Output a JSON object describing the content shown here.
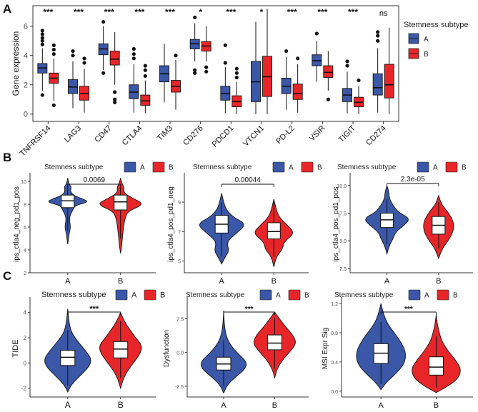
{
  "colors": {
    "A": "#3a57a8",
    "B": "#e8262a",
    "axis": "#333333",
    "text": "#4d4d4d"
  },
  "panel_labels": [
    "A",
    "B",
    "C"
  ],
  "legend_title": "Stemness subtype",
  "legend_keys": [
    "A",
    "B"
  ],
  "chart_data": [
    {
      "panel": "A",
      "type": "boxplot",
      "ylabel": "Gene expression",
      "ylim": [
        -0.5,
        7.4
      ],
      "yticks": [
        0,
        2,
        4,
        6
      ],
      "series": [
        {
          "name": "A"
        },
        {
          "name": "B"
        }
      ],
      "genes": [
        {
          "name": "TNFRSF14",
          "sig": "***",
          "A": {
            "q1": 2.8,
            "med": 3.15,
            "q3": 3.45,
            "lo": 1.6,
            "hi": 4.5,
            "out": [
              1.3,
              4.75,
              5.0,
              5.2,
              5.45,
              5.7
            ]
          },
          "B": {
            "q1": 2.1,
            "med": 2.45,
            "q3": 2.8,
            "lo": 0.9,
            "hi": 3.8,
            "out": [
              4.1,
              4.4,
              4.7,
              0.6
            ]
          }
        },
        {
          "name": "LAG3",
          "sig": "***",
          "A": {
            "q1": 1.4,
            "med": 1.85,
            "q3": 2.35,
            "lo": 0.4,
            "hi": 3.6,
            "out": [
              4.0,
              4.3
            ]
          },
          "B": {
            "q1": 0.95,
            "med": 1.4,
            "q3": 1.9,
            "lo": 0.1,
            "hi": 3.1,
            "out": [
              3.5,
              3.8
            ]
          }
        },
        {
          "name": "CD47",
          "sig": "***",
          "A": {
            "q1": 4.05,
            "med": 4.45,
            "q3": 4.8,
            "lo": 3.0,
            "hi": 6.0,
            "out": [
              6.3,
              2.8
            ]
          },
          "B": {
            "q1": 3.35,
            "med": 3.75,
            "q3": 4.3,
            "lo": 2.0,
            "hi": 5.6,
            "out": [
              1.5,
              1.0,
              0.8
            ]
          }
        },
        {
          "name": "CTLA4",
          "sig": "***",
          "A": {
            "q1": 1.05,
            "med": 1.5,
            "q3": 2.0,
            "lo": 0.1,
            "hi": 3.4,
            "out": [
              3.8,
              4.1,
              4.45
            ]
          },
          "B": {
            "q1": 0.6,
            "med": 0.9,
            "q3": 1.3,
            "lo": 0.05,
            "hi": 2.3,
            "out": [
              2.6,
              3.0,
              3.3
            ]
          }
        },
        {
          "name": "TIM3",
          "sig": "***",
          "A": {
            "q1": 2.2,
            "med": 2.75,
            "q3": 3.3,
            "lo": 0.8,
            "hi": 4.8,
            "out": []
          },
          "B": {
            "q1": 1.5,
            "med": 1.9,
            "q3": 2.3,
            "lo": 0.3,
            "hi": 3.7,
            "out": [
              4.0
            ]
          }
        },
        {
          "name": "CD276",
          "sig": "*",
          "A": {
            "q1": 4.45,
            "med": 4.8,
            "q3": 5.1,
            "lo": 3.6,
            "hi": 6.2,
            "out": [
              6.6,
              3.0,
              2.8
            ]
          },
          "B": {
            "q1": 4.3,
            "med": 4.65,
            "q3": 4.95,
            "lo": 3.6,
            "hi": 6.0,
            "out": [
              3.2,
              2.9
            ]
          }
        },
        {
          "name": "PDCD1",
          "sig": "***",
          "A": {
            "q1": 0.95,
            "med": 1.4,
            "q3": 1.9,
            "lo": 0.05,
            "hi": 3.2,
            "out": [
              3.5,
              4.7
            ]
          },
          "B": {
            "q1": 0.5,
            "med": 0.85,
            "q3": 1.25,
            "lo": 0.0,
            "hi": 2.2,
            "out": [
              2.5,
              2.8,
              3.1
            ]
          }
        },
        {
          "name": "VTCN1",
          "sig": "*",
          "A": {
            "q1": 0.85,
            "med": 2.2,
            "q3": 3.6,
            "lo": 0.0,
            "hi": 6.3,
            "out": []
          },
          "B": {
            "q1": 1.2,
            "med": 2.55,
            "q3": 3.95,
            "lo": 0.0,
            "hi": 7.2,
            "out": []
          }
        },
        {
          "name": "PD-L2",
          "sig": "***",
          "A": {
            "q1": 1.4,
            "med": 1.9,
            "q3": 2.45,
            "lo": 0.3,
            "hi": 3.9,
            "out": [
              4.3
            ]
          },
          "B": {
            "q1": 1.0,
            "med": 1.4,
            "q3": 2.05,
            "lo": 0.1,
            "hi": 3.4,
            "out": [
              3.8
            ]
          }
        },
        {
          "name": "VSIR",
          "sig": "***",
          "A": {
            "q1": 3.3,
            "med": 3.65,
            "q3": 4.05,
            "lo": 2.2,
            "hi": 5.0,
            "out": [
              5.5
            ]
          },
          "B": {
            "q1": 2.5,
            "med": 2.85,
            "q3": 3.3,
            "lo": 1.6,
            "hi": 4.3,
            "out": [
              1.0
            ]
          }
        },
        {
          "name": "TIGIT",
          "sig": "***",
          "A": {
            "q1": 0.85,
            "med": 1.3,
            "q3": 1.75,
            "lo": 0.05,
            "hi": 2.9,
            "out": [
              3.3,
              3.6
            ]
          },
          "B": {
            "q1": 0.5,
            "med": 0.8,
            "q3": 1.15,
            "lo": 0.0,
            "hi": 1.9,
            "out": [
              2.3
            ]
          }
        },
        {
          "name": "CD274",
          "sig": "ns",
          "A": {
            "q1": 1.3,
            "med": 1.8,
            "q3": 2.75,
            "lo": 0.1,
            "hi": 4.5,
            "out": [
              5.0,
              5.35,
              5.6
            ]
          },
          "B": {
            "q1": 1.1,
            "med": 2.0,
            "q3": 3.4,
            "lo": 0.0,
            "hi": 5.9,
            "out": []
          }
        }
      ]
    },
    {
      "panel": "B1",
      "type": "violin",
      "ylabel": "ips_ctla4_neg_pd1_pos",
      "ylim": [
        2,
        10.5
      ],
      "yticks": [
        2,
        4,
        6,
        8,
        10
      ],
      "categories": [
        "A",
        "B"
      ],
      "pvalue": "0.0069",
      "groups": [
        {
          "name": "A",
          "q1": 7.7,
          "med": 8.3,
          "q3": 8.8,
          "lo": 5.7,
          "hi": 9.5,
          "density": [
            [
              4.5,
              0.0
            ],
            [
              5.5,
              0.06
            ],
            [
              6.0,
              0.12
            ],
            [
              6.8,
              0.05
            ],
            [
              7.5,
              0.2
            ],
            [
              7.9,
              0.3
            ],
            [
              8.2,
              0.85
            ],
            [
              8.5,
              0.55
            ],
            [
              8.8,
              0.2
            ],
            [
              9.2,
              0.1
            ],
            [
              9.5,
              0.15
            ],
            [
              9.8,
              0.04
            ],
            [
              10.3,
              0.0
            ]
          ]
        },
        {
          "name": "B",
          "q1": 7.5,
          "med": 8.2,
          "q3": 8.8,
          "lo": 5.0,
          "hi": 9.5,
          "density": [
            [
              3.7,
              0.0
            ],
            [
              4.3,
              0.04
            ],
            [
              5.2,
              0.08
            ],
            [
              6.0,
              0.12
            ],
            [
              6.8,
              0.18
            ],
            [
              7.4,
              0.3
            ],
            [
              8.0,
              0.95
            ],
            [
              8.5,
              0.5
            ],
            [
              9.0,
              0.12
            ],
            [
              9.5,
              0.14
            ],
            [
              9.9,
              0.04
            ],
            [
              10.3,
              0.0
            ]
          ]
        }
      ]
    },
    {
      "panel": "B2",
      "type": "violin",
      "ylabel": "ips_ctla4_pos_pd1_neg",
      "ylim": [
        4.2,
        10.8
      ],
      "yticks": [
        5,
        7,
        9
      ],
      "categories": [
        "A",
        "B"
      ],
      "pvalue": "0.00044",
      "groups": [
        {
          "name": "A",
          "q1": 6.9,
          "med": 7.5,
          "q3": 8.1,
          "lo": 5.3,
          "hi": 9.0,
          "density": [
            [
              4.8,
              0.0
            ],
            [
              5.3,
              0.15
            ],
            [
              5.7,
              0.3
            ],
            [
              6.3,
              0.2
            ],
            [
              6.9,
              0.6
            ],
            [
              7.5,
              1.0
            ],
            [
              8.0,
              0.45
            ],
            [
              8.5,
              0.18
            ],
            [
              9.0,
              0.08
            ],
            [
              9.6,
              0.0
            ]
          ]
        },
        {
          "name": "B",
          "q1": 6.5,
          "med": 7.0,
          "q3": 7.6,
          "lo": 5.3,
          "hi": 9.0,
          "density": [
            [
              4.6,
              0.0
            ],
            [
              5.3,
              0.1
            ],
            [
              5.8,
              0.35
            ],
            [
              6.3,
              0.4
            ],
            [
              6.9,
              0.85
            ],
            [
              7.5,
              0.5
            ],
            [
              8.0,
              0.2
            ],
            [
              8.6,
              0.08
            ],
            [
              9.2,
              0.0
            ]
          ]
        }
      ]
    },
    {
      "panel": "B3",
      "type": "violin",
      "ylabel": "ips_ctla4_pos_pd1_pos",
      "ylim": [
        2.1,
        10.9
      ],
      "yticks": [
        2.5,
        5.0,
        7.5,
        10.0
      ],
      "categories": [
        "A",
        "B"
      ],
      "pvalue": "2.3e-05",
      "groups": [
        {
          "name": "A",
          "q1": 6.2,
          "med": 6.9,
          "q3": 7.5,
          "lo": 4.7,
          "hi": 8.8,
          "density": [
            [
              3.8,
              0.0
            ],
            [
              4.6,
              0.1
            ],
            [
              5.2,
              0.25
            ],
            [
              5.8,
              0.35
            ],
            [
              6.4,
              0.7
            ],
            [
              7.0,
              0.95
            ],
            [
              7.6,
              0.45
            ],
            [
              8.2,
              0.25
            ],
            [
              8.8,
              0.1
            ],
            [
              9.4,
              0.08
            ],
            [
              10.0,
              0.0
            ]
          ]
        },
        {
          "name": "B",
          "q1": 5.6,
          "med": 6.4,
          "q3": 7.2,
          "lo": 4.3,
          "hi": 8.5,
          "density": [
            [
              3.4,
              0.0
            ],
            [
              4.3,
              0.15
            ],
            [
              5.2,
              0.45
            ],
            [
              6.0,
              0.62
            ],
            [
              6.8,
              0.6
            ],
            [
              7.6,
              0.38
            ],
            [
              8.3,
              0.12
            ],
            [
              9.1,
              0.0
            ]
          ]
        }
      ]
    },
    {
      "panel": "C1",
      "type": "violin",
      "ylabel": "TIDE",
      "ylim": [
        -2.7,
        5.0
      ],
      "yticks": [
        -2,
        0,
        2,
        4
      ],
      "categories": [
        "A",
        "B"
      ],
      "pvalue": "***",
      "groups": [
        {
          "name": "A",
          "q1": -0.2,
          "med": 0.45,
          "q3": 1.0,
          "lo": -1.8,
          "hi": 2.6,
          "density": [
            [
              -2.3,
              0.0
            ],
            [
              -1.7,
              0.15
            ],
            [
              -1.0,
              0.5
            ],
            [
              -0.3,
              0.85
            ],
            [
              0.3,
              0.95
            ],
            [
              1.0,
              0.7
            ],
            [
              1.7,
              0.4
            ],
            [
              2.4,
              0.15
            ],
            [
              3.2,
              0.05
            ],
            [
              4.3,
              0.0
            ]
          ]
        },
        {
          "name": "B",
          "q1": 0.4,
          "med": 1.1,
          "q3": 1.7,
          "lo": -1.2,
          "hi": 3.3,
          "density": [
            [
              -2.0,
              0.0
            ],
            [
              -1.3,
              0.1
            ],
            [
              -0.6,
              0.28
            ],
            [
              0.1,
              0.55
            ],
            [
              0.8,
              0.8
            ],
            [
              1.4,
              0.85
            ],
            [
              2.0,
              0.6
            ],
            [
              2.7,
              0.35
            ],
            [
              3.3,
              0.15
            ],
            [
              4.0,
              0.0
            ]
          ]
        }
      ]
    },
    {
      "panel": "C2",
      "type": "violin",
      "ylabel": "Dysfunction",
      "ylim": [
        -3.3,
        3.9
      ],
      "yticks": [
        -2.5,
        0.0,
        2.5
      ],
      "categories": [
        "A",
        "B"
      ],
      "pvalue": "***",
      "groups": [
        {
          "name": "A",
          "q1": -1.3,
          "med": -0.85,
          "q3": -0.35,
          "lo": -2.5,
          "hi": 0.9,
          "density": [
            [
              -3.0,
              0.0
            ],
            [
              -2.4,
              0.15
            ],
            [
              -1.8,
              0.5
            ],
            [
              -1.2,
              0.9
            ],
            [
              -0.7,
              0.95
            ],
            [
              -0.1,
              0.6
            ],
            [
              0.5,
              0.3
            ],
            [
              1.2,
              0.1
            ],
            [
              2.2,
              0.02
            ],
            [
              3.1,
              0.0
            ]
          ]
        },
        {
          "name": "B",
          "q1": 0.2,
          "med": 0.7,
          "q3": 1.3,
          "lo": -1.2,
          "hi": 2.6,
          "density": [
            [
              -1.9,
              0.0
            ],
            [
              -1.3,
              0.08
            ],
            [
              -0.6,
              0.3
            ],
            [
              0.1,
              0.65
            ],
            [
              0.7,
              0.9
            ],
            [
              1.3,
              0.75
            ],
            [
              1.9,
              0.45
            ],
            [
              2.5,
              0.2
            ],
            [
              3.0,
              0.0
            ]
          ]
        }
      ]
    },
    {
      "panel": "C3",
      "type": "violin",
      "ylabel": "MSI Expr Sig",
      "ylim": [
        -0.08,
        1.25
      ],
      "yticks": [
        0.0,
        0.4,
        0.8,
        1.2
      ],
      "categories": [
        "A",
        "B"
      ],
      "pvalue": "***",
      "groups": [
        {
          "name": "A",
          "q1": 0.38,
          "med": 0.52,
          "q3": 0.65,
          "lo": 0.1,
          "hi": 0.95,
          "density": [
            [
              0.02,
              0.0
            ],
            [
              0.12,
              0.2
            ],
            [
              0.25,
              0.6
            ],
            [
              0.38,
              0.9
            ],
            [
              0.52,
              0.95
            ],
            [
              0.65,
              0.8
            ],
            [
              0.78,
              0.55
            ],
            [
              0.92,
              0.25
            ],
            [
              1.05,
              0.1
            ],
            [
              1.2,
              0.0
            ]
          ]
        },
        {
          "name": "B",
          "q1": 0.22,
          "med": 0.33,
          "q3": 0.47,
          "lo": 0.05,
          "hi": 0.75,
          "density": [
            [
              -0.02,
              0.0
            ],
            [
              0.08,
              0.5
            ],
            [
              0.18,
              0.85
            ],
            [
              0.3,
              0.95
            ],
            [
              0.42,
              0.75
            ],
            [
              0.55,
              0.45
            ],
            [
              0.68,
              0.22
            ],
            [
              0.82,
              0.1
            ],
            [
              0.95,
              0.03
            ],
            [
              1.05,
              0.0
            ]
          ]
        }
      ]
    }
  ]
}
